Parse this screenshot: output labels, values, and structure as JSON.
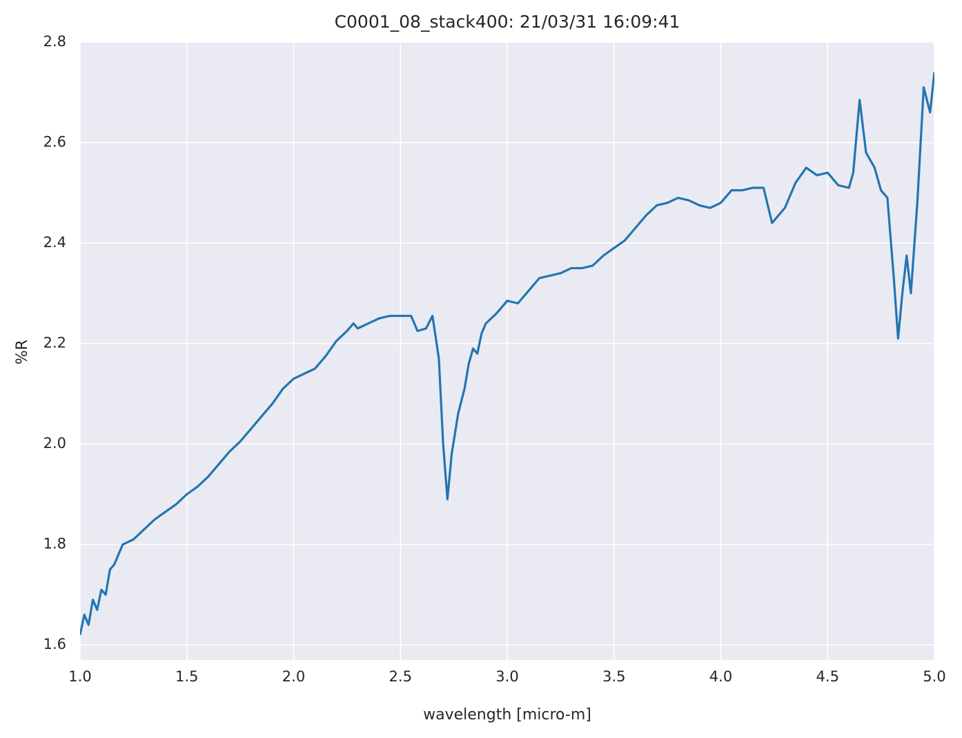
{
  "chart_data": {
    "type": "line",
    "title": "C0001_08_stack400:  21/03/31 16:09:41",
    "xlabel": "wavelength [micro-m]",
    "ylabel": "%R",
    "color": "#2275b0",
    "grid": true,
    "xlim": [
      1,
      5
    ],
    "ylim": [
      1.57,
      2.8
    ],
    "xticks": [
      {
        "value": 1,
        "label": "1.0"
      },
      1.5,
      {
        "value": 2,
        "label": "2.0"
      },
      2.5,
      {
        "value": 3,
        "label": "3.0"
      },
      3.5,
      {
        "value": 4,
        "label": "4.0"
      },
      4.5,
      {
        "value": 5,
        "label": "5.0"
      }
    ],
    "yticks": [
      1.6,
      1.8,
      {
        "value": 2,
        "label": "2.0"
      },
      2.2,
      2.4,
      2.6,
      2.8
    ],
    "x": [
      1.0,
      1.02,
      1.04,
      1.06,
      1.08,
      1.1,
      1.12,
      1.14,
      1.16,
      1.2,
      1.25,
      1.3,
      1.35,
      1.4,
      1.45,
      1.5,
      1.55,
      1.6,
      1.65,
      1.7,
      1.75,
      1.8,
      1.85,
      1.9,
      1.95,
      2.0,
      2.05,
      2.1,
      2.15,
      2.2,
      2.25,
      2.28,
      2.3,
      2.35,
      2.4,
      2.45,
      2.5,
      2.55,
      2.58,
      2.62,
      2.65,
      2.68,
      2.7,
      2.72,
      2.74,
      2.77,
      2.8,
      2.82,
      2.84,
      2.86,
      2.88,
      2.9,
      2.95,
      3.0,
      3.05,
      3.1,
      3.15,
      3.2,
      3.25,
      3.3,
      3.35,
      3.4,
      3.45,
      3.5,
      3.55,
      3.6,
      3.65,
      3.7,
      3.75,
      3.8,
      3.85,
      3.9,
      3.95,
      4.0,
      4.05,
      4.1,
      4.15,
      4.2,
      4.24,
      4.3,
      4.35,
      4.4,
      4.45,
      4.5,
      4.55,
      4.6,
      4.62,
      4.65,
      4.68,
      4.72,
      4.75,
      4.78,
      4.81,
      4.83,
      4.85,
      4.87,
      4.89,
      4.92,
      4.95,
      4.98,
      5.0
    ],
    "values": [
      1.62,
      1.66,
      1.64,
      1.69,
      1.67,
      1.71,
      1.7,
      1.75,
      1.76,
      1.8,
      1.81,
      1.83,
      1.85,
      1.865,
      1.88,
      1.9,
      1.915,
      1.935,
      1.96,
      1.985,
      2.005,
      2.03,
      2.055,
      2.08,
      2.11,
      2.13,
      2.14,
      2.15,
      2.175,
      2.205,
      2.225,
      2.24,
      2.23,
      2.24,
      2.25,
      2.255,
      2.255,
      2.255,
      2.225,
      2.23,
      2.255,
      2.17,
      2.0,
      1.89,
      1.98,
      2.06,
      2.11,
      2.16,
      2.19,
      2.18,
      2.22,
      2.24,
      2.26,
      2.285,
      2.28,
      2.305,
      2.33,
      2.335,
      2.34,
      2.35,
      2.35,
      2.355,
      2.375,
      2.39,
      2.405,
      2.43,
      2.455,
      2.475,
      2.48,
      2.49,
      2.485,
      2.475,
      2.47,
      2.48,
      2.505,
      2.505,
      2.51,
      2.51,
      2.44,
      2.47,
      2.52,
      2.55,
      2.535,
      2.54,
      2.515,
      2.51,
      2.54,
      2.685,
      2.58,
      2.55,
      2.505,
      2.49,
      2.33,
      2.21,
      2.3,
      2.375,
      2.3,
      2.48,
      2.71,
      2.66,
      2.74
    ]
  }
}
